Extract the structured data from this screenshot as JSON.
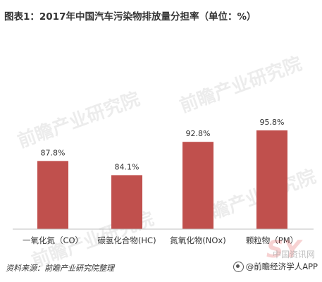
{
  "title": "图表1：2017年中国汽车污染物排放量分担率（单位：%）",
  "watermark_text": "前瞻产业研究院",
  "source": "资料来源：前瞻产业研究院整理",
  "credit": "@前瞻经济学人APP",
  "site_watermark": "SY",
  "site_text": "中国资讯网",
  "colors": {
    "bar": "#c0504d",
    "axis": "#bfbfbf",
    "text": "#333333"
  },
  "chart_data": {
    "type": "bar",
    "title": "",
    "categories": [
      "一氧化氮（CO）",
      "碳氢化合物(HC)",
      "氮氧化物(NOx)",
      "颗粒物（PM）"
    ],
    "values": [
      87.8,
      84.1,
      92.8,
      95.8
    ],
    "value_labels": [
      "87.8%",
      "84.1%",
      "92.8%",
      "95.8%"
    ],
    "ylim": [
      70,
      100
    ],
    "grid": false,
    "legend": "none"
  }
}
